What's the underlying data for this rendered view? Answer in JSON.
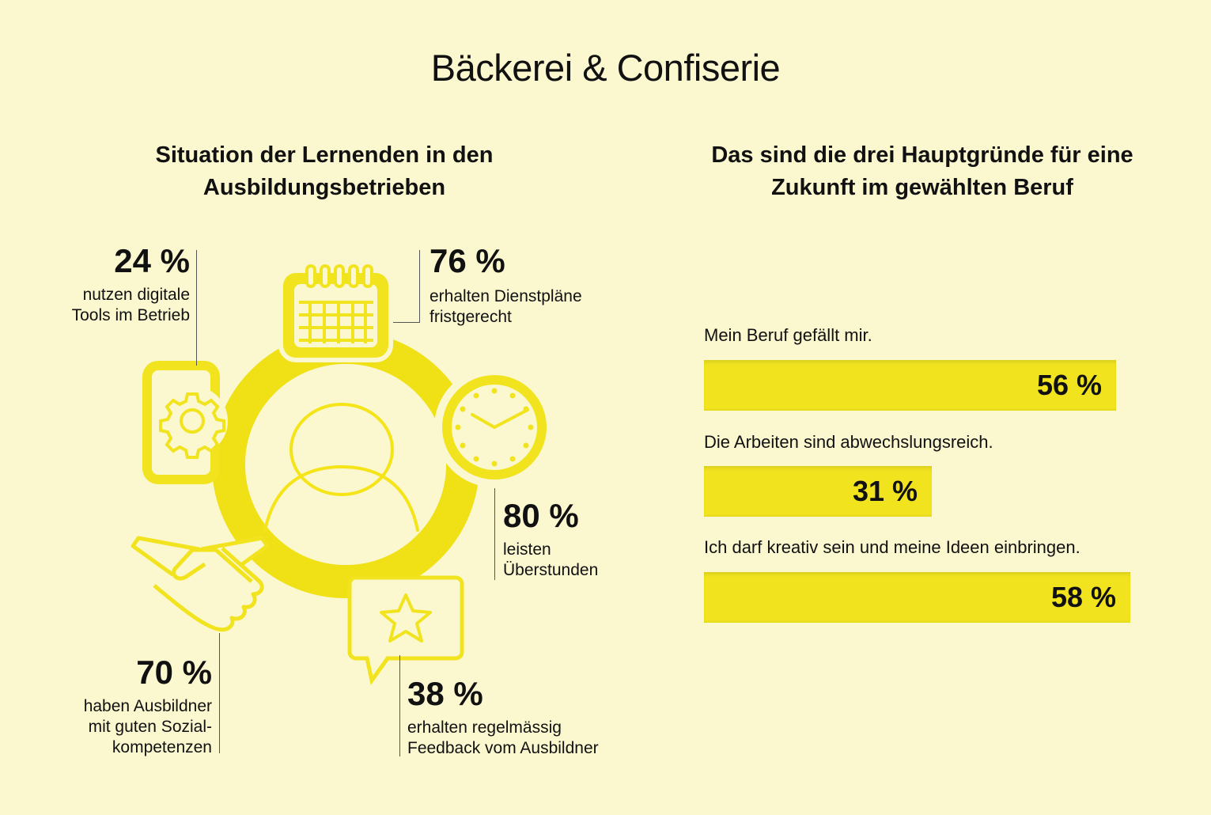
{
  "page": {
    "title": "Bäckerei & Confiserie"
  },
  "left": {
    "title_line1": "Situation der Lernenden in den",
    "title_line2": "Ausbildungsbetrieben",
    "stats": {
      "digital_tools": {
        "value": "24 %",
        "text_line1": "nutzen digitale",
        "text_line2": "Tools im Betrieb",
        "icon": "smartphone-gear-icon"
      },
      "schedule": {
        "value": "76 %",
        "text_line1": "erhalten Dienstpläne",
        "text_line2": "fristgerecht",
        "icon": "calendar-icon"
      },
      "overtime": {
        "value": "80 %",
        "text_line1": "leisten",
        "text_line2": "Überstunden",
        "icon": "clock-icon"
      },
      "feedback": {
        "value": "38 %",
        "text_line1": "erhalten regelmässig",
        "text_line2": "Feedback vom Ausbildner",
        "icon": "star-speech-bubble-icon"
      },
      "social": {
        "value": "70 %",
        "text_line1": "haben Ausbildner",
        "text_line2": "mit guten Sozial-",
        "text_line3": "kompetenzen",
        "icon": "handshake-icon"
      }
    },
    "center_icon": "person-icon"
  },
  "right": {
    "title_line1": "Das sind die drei Hauptgründe für eine",
    "title_line2": "Zukunft im gewählten Beruf"
  },
  "chart_data": {
    "type": "bar",
    "orientation": "horizontal",
    "categories": [
      "Mein Beruf gefällt mir.",
      "Die Arbeiten sind abwechslungsreich.",
      "Ich darf kreativ sein und meine Ideen einbringen."
    ],
    "values": [
      56,
      31,
      58
    ],
    "value_labels": [
      "56 %",
      "31 %",
      "58 %"
    ],
    "unit": "%",
    "xlim": [
      0,
      100
    ],
    "bar_color": "#f1e41f",
    "grid": false,
    "legend": "none"
  },
  "colors": {
    "background": "#fbf7cf",
    "accent": "#f1e41f",
    "icon_stroke": "#f4e418",
    "text": "#111111"
  }
}
